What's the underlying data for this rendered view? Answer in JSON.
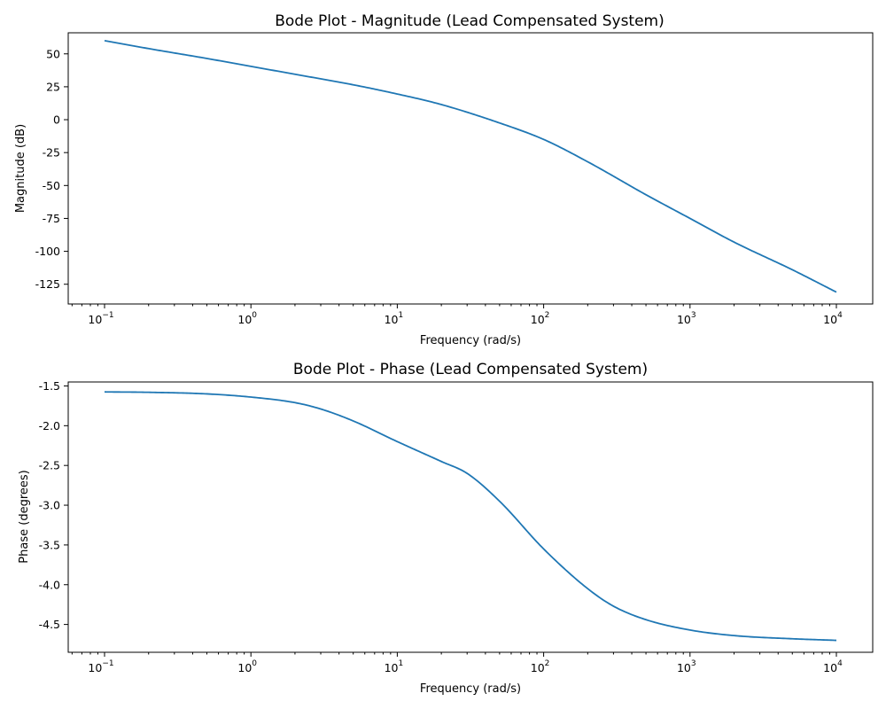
{
  "chart_data": [
    {
      "type": "line",
      "title": "Bode Plot - Magnitude (Lead Compensated System)",
      "xlabel": "Frequency (rad/s)",
      "ylabel": "Magnitude (dB)",
      "xscale": "log",
      "xlim": [
        0.1,
        10000
      ],
      "ylim": [
        -140,
        66
      ],
      "x_ticks": [
        {
          "base": "10",
          "exp": "−1",
          "value": 0.1
        },
        {
          "base": "10",
          "exp": "0",
          "value": 1
        },
        {
          "base": "10",
          "exp": "1",
          "value": 10
        },
        {
          "base": "10",
          "exp": "2",
          "value": 100
        },
        {
          "base": "10",
          "exp": "3",
          "value": 1000
        },
        {
          "base": "10",
          "exp": "4",
          "value": 10000
        }
      ],
      "y_ticks": [
        {
          "label": "50",
          "value": 50
        },
        {
          "label": "25",
          "value": 25
        },
        {
          "label": "0",
          "value": 0
        },
        {
          "label": "-25",
          "value": -25
        },
        {
          "label": "-50",
          "value": -50
        },
        {
          "label": "-75",
          "value": -75
        },
        {
          "label": "-100",
          "value": -100
        },
        {
          "label": "-125",
          "value": -125
        }
      ],
      "grid": false,
      "color": "#1f77b4",
      "series": [
        {
          "x": [
            0.1,
            0.2,
            0.5,
            1,
            2,
            5,
            10,
            20,
            50,
            100,
            200,
            500,
            1000,
            2000,
            5000,
            10000
          ],
          "y": [
            60,
            54,
            46.5,
            40.5,
            34.5,
            26.5,
            19.5,
            11.5,
            -2.5,
            -15,
            -32,
            -57,
            -75,
            -93,
            -114,
            -131
          ]
        }
      ]
    },
    {
      "type": "line",
      "title": "Bode Plot - Phase (Lead Compensated System)",
      "xlabel": "Frequency (rad/s)",
      "ylabel": "Phase (degrees)",
      "xscale": "log",
      "xlim": [
        0.1,
        10000
      ],
      "ylim": [
        -4.85,
        -1.45
      ],
      "x_ticks": [
        {
          "base": "10",
          "exp": "−1",
          "value": 0.1
        },
        {
          "base": "10",
          "exp": "0",
          "value": 1
        },
        {
          "base": "10",
          "exp": "1",
          "value": 10
        },
        {
          "base": "10",
          "exp": "2",
          "value": 100
        },
        {
          "base": "10",
          "exp": "3",
          "value": 1000
        },
        {
          "base": "10",
          "exp": "4",
          "value": 10000
        }
      ],
      "y_ticks": [
        {
          "label": "-1.5",
          "value": -1.5
        },
        {
          "label": "-2.0",
          "value": -2.0
        },
        {
          "label": "-2.5",
          "value": -2.5
        },
        {
          "label": "-3.0",
          "value": -3.0
        },
        {
          "label": "-3.5",
          "value": -3.5
        },
        {
          "label": "-4.0",
          "value": -4.0
        },
        {
          "label": "-4.5",
          "value": -4.5
        }
      ],
      "grid": false,
      "color": "#1f77b4",
      "series": [
        {
          "x": [
            0.1,
            0.2,
            0.5,
            1,
            2,
            3,
            5,
            10,
            20,
            30,
            50,
            100,
            200,
            300,
            500,
            1000,
            2000,
            5000,
            10000
          ],
          "y": [
            -1.575,
            -1.58,
            -1.6,
            -1.64,
            -1.71,
            -1.79,
            -1.94,
            -2.2,
            -2.45,
            -2.6,
            -2.95,
            -3.55,
            -4.05,
            -4.27,
            -4.44,
            -4.57,
            -4.64,
            -4.68,
            -4.7
          ]
        }
      ]
    }
  ]
}
